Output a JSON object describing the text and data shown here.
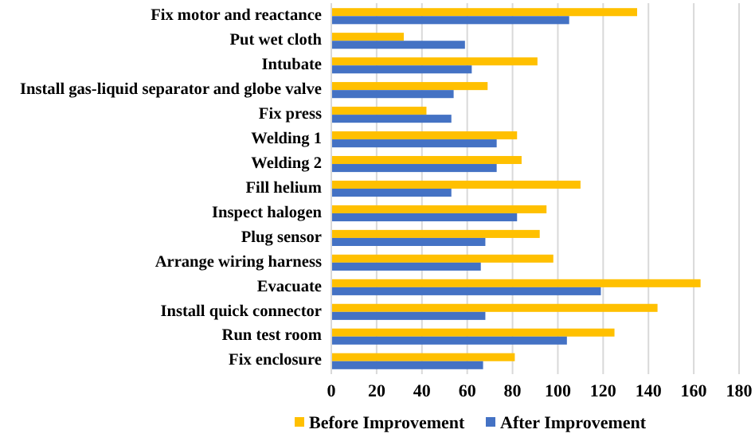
{
  "chart_data": {
    "type": "bar",
    "orientation": "horizontal",
    "categories": [
      "Fix motor and reactance",
      "Put wet cloth",
      "Intubate",
      "Install gas-liquid separator and globe valve",
      "Fix press",
      "Welding 1",
      "Welding 2",
      "Fill helium",
      "Inspect halogen",
      "Plug sensor",
      "Arrange wiring harness",
      "Evacuate",
      "Install quick connector",
      "Run test room",
      "Fix enclosure"
    ],
    "series": [
      {
        "name": "Before Improvement",
        "color": "#ffc000",
        "values": [
          135,
          32,
          91,
          69,
          42,
          82,
          84,
          110,
          95,
          92,
          98,
          163,
          144,
          125,
          81
        ]
      },
      {
        "name": "After Improvement",
        "color": "#4472c4",
        "values": [
          105,
          59,
          62,
          54,
          53,
          73,
          73,
          53,
          82,
          68,
          66,
          119,
          68,
          104,
          67
        ]
      }
    ],
    "xlim": [
      0,
      180
    ],
    "xticks": [
      0,
      20,
      40,
      60,
      80,
      100,
      120,
      140,
      160,
      180
    ],
    "grid": "x",
    "legend": "bottom"
  }
}
